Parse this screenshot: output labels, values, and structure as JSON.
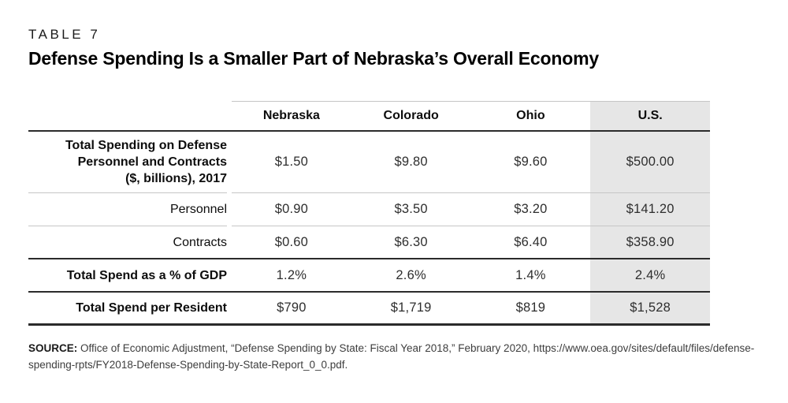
{
  "page": {
    "kicker": "TABLE 7",
    "title": "Defense Spending Is a Smaller Part of Nebraska’s Overall Economy"
  },
  "table": {
    "columns": [
      "Nebraska",
      "Colorado",
      "Ohio",
      "U.S."
    ],
    "highlighted_column": "U.S.",
    "rows": [
      {
        "label": "Total Spending on Defense Personnel and Contracts ($, billions), 2017",
        "label_lines": [
          "Total Spending on Defense",
          "Personnel and Contracts",
          "($, billions), 2017"
        ],
        "bold": true,
        "divider": "thin",
        "values": [
          "$1.50",
          "$9.80",
          "$9.60",
          "$500.00"
        ]
      },
      {
        "label": "Personnel",
        "bold": false,
        "divider": "thin",
        "values": [
          "$0.90",
          "$3.50",
          "$3.20",
          "$141.20"
        ]
      },
      {
        "label": "Contracts",
        "bold": false,
        "divider": "dark",
        "values": [
          "$0.60",
          "$6.30",
          "$6.40",
          "$358.90"
        ]
      },
      {
        "label": "Total Spend as a % of GDP",
        "bold": true,
        "divider": "dark",
        "values": [
          "1.2%",
          "2.6%",
          "1.4%",
          "2.4%"
        ]
      },
      {
        "label": "Total Spend per Resident",
        "bold": true,
        "divider": "dark-thick",
        "values": [
          "$790",
          "$1,719",
          "$819",
          "$1,528"
        ]
      }
    ]
  },
  "source": {
    "label": "SOURCE:",
    "text": " Office of Economic Adjustment, “Defense Spending by State: Fiscal Year 2018,” February 2020, https://www.oea.gov/sites/default/files/defense-spending-rpts/FY2018-Defense-Spending-by-State-Report_0_0.pdf."
  },
  "colors": {
    "highlight_column_bg": "#e6e6e6",
    "rule_dark": "#2b2b2b",
    "rule_light": "#c6c6c6"
  },
  "chart_data": {
    "type": "table",
    "title": "Defense Spending Is a Smaller Part of Nebraska’s Overall Economy",
    "table_number": "TABLE 7",
    "columns": [
      "Nebraska",
      "Colorado",
      "Ohio",
      "U.S."
    ],
    "rows": [
      {
        "label": "Total Spending on Defense Personnel and Contracts ($, billions), 2017",
        "unit": "$ billions",
        "values": [
          1.5,
          9.8,
          9.6,
          500.0
        ]
      },
      {
        "label": "Personnel",
        "unit": "$ billions",
        "values": [
          0.9,
          3.5,
          3.2,
          141.2
        ]
      },
      {
        "label": "Contracts",
        "unit": "$ billions",
        "values": [
          0.6,
          6.3,
          6.4,
          358.9
        ]
      },
      {
        "label": "Total Spend as a % of GDP",
        "unit": "%",
        "values": [
          1.2,
          2.6,
          1.4,
          2.4
        ]
      },
      {
        "label": "Total Spend per Resident",
        "unit": "$",
        "values": [
          790,
          1719,
          819,
          1528
        ]
      }
    ],
    "layout_hints": {
      "highlighted_column": "U.S.",
      "row_labels_alignment": "right",
      "values_alignment": "center"
    },
    "source": "SOURCE: Office of Economic Adjustment, “Defense Spending by State: Fiscal Year 2018,” February 2020, https://www.oea.gov/sites/default/files/defense-spending-rpts/FY2018-Defense-Spending-by-State-Report_0_0.pdf."
  }
}
